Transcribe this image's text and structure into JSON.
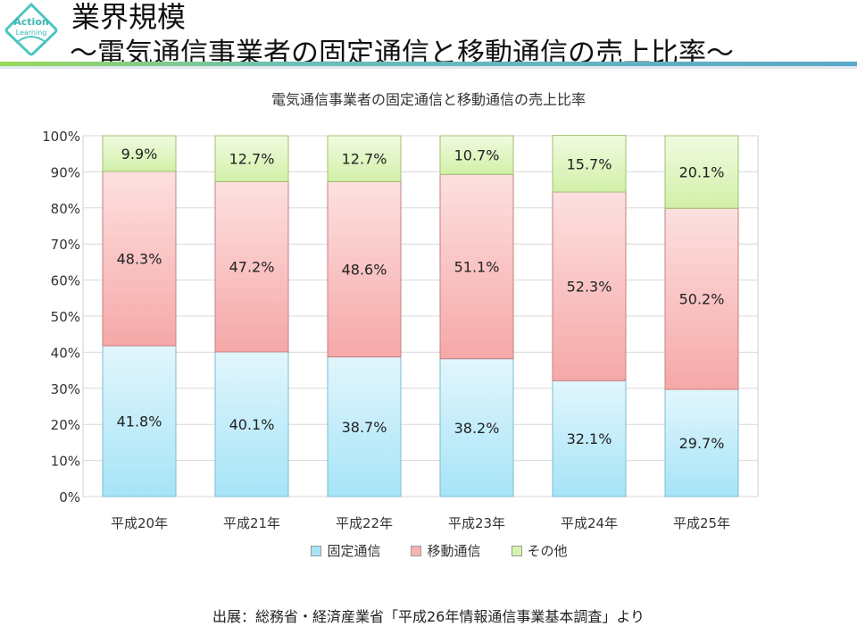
{
  "header": {
    "logo_text": [
      "Action",
      "Learning"
    ],
    "title": "業界規模",
    "subtitle": "～電気通信事業者の固定通信と移動通信の売上比率～"
  },
  "chart_data": {
    "type": "bar",
    "stacked": true,
    "title": "電気通信事業者の固定通信と移動通信の売上比率",
    "categories": [
      "平成20年",
      "平成21年",
      "平成22年",
      "平成23年",
      "平成24年",
      "平成25年"
    ],
    "series": [
      {
        "name": "固定通信",
        "values": [
          41.8,
          40.1,
          38.7,
          38.2,
          32.1,
          29.7
        ],
        "color": "#a8e4f6"
      },
      {
        "name": "移動通信",
        "values": [
          48.3,
          47.2,
          48.6,
          51.1,
          52.3,
          50.2
        ],
        "color": "#f8b4b4"
      },
      {
        "name": "その他",
        "values": [
          9.9,
          12.7,
          12.7,
          10.7,
          15.7,
          20.1
        ],
        "color": "#d8f2b0"
      }
    ],
    "yticks": [
      "0%",
      "10%",
      "20%",
      "30%",
      "40%",
      "50%",
      "60%",
      "70%",
      "80%",
      "90%",
      "100%"
    ],
    "ylim": [
      0,
      100
    ],
    "grid": true,
    "legend": "bottom"
  },
  "footer": {
    "source": "出展：総務省・経済産業省「平成26年情報通信事業基本調査」より"
  }
}
